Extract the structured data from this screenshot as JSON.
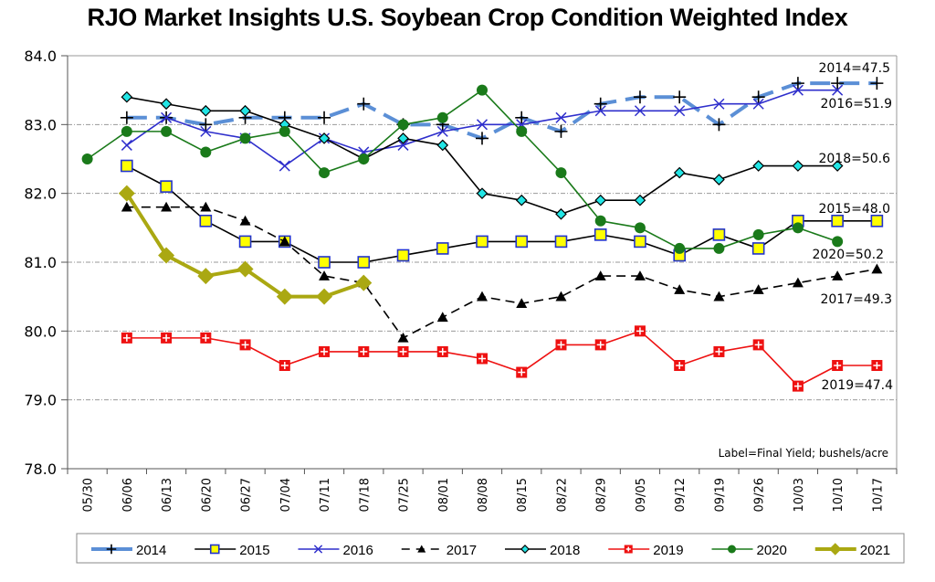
{
  "chart_data": {
    "type": "line",
    "title": "RJO Market Insights U.S. Soybean Crop Condition Weighted Index",
    "xlabel": "",
    "ylabel": "",
    "ylim": [
      78.0,
      84.0
    ],
    "yticks": [
      "78.0",
      "79.0",
      "80.0",
      "81.0",
      "82.0",
      "83.0",
      "84.0"
    ],
    "grid": true,
    "legend_position": "bottom",
    "note": "Label=Final Yield; bushels/acre",
    "categories": [
      "05/30",
      "06/06",
      "06/13",
      "06/20",
      "06/27",
      "07/04",
      "07/11",
      "07/18",
      "07/25",
      "08/01",
      "08/08",
      "08/15",
      "08/22",
      "08/29",
      "09/05",
      "09/12",
      "09/19",
      "09/26",
      "10/03",
      "10/10",
      "10/17"
    ],
    "series": [
      {
        "name": "2014",
        "color": "#5b8fd6",
        "marker": "plus",
        "dash": "long",
        "width": 4,
        "values": [
          null,
          83.1,
          83.1,
          83.0,
          83.1,
          83.1,
          83.1,
          83.3,
          83.0,
          83.0,
          82.8,
          83.1,
          82.9,
          83.3,
          83.4,
          83.4,
          83.0,
          83.4,
          83.6,
          83.6,
          83.6
        ],
        "label": "2014=47.5"
      },
      {
        "name": "2015",
        "color": "#000000",
        "marker": "square",
        "fill": "#ffff00",
        "stroke": "#2233cc",
        "values": [
          null,
          82.4,
          82.1,
          81.6,
          81.3,
          81.3,
          81.0,
          81.0,
          81.1,
          81.2,
          81.3,
          81.3,
          81.3,
          81.4,
          81.3,
          81.1,
          81.4,
          81.2,
          81.6,
          81.6,
          81.6
        ],
        "label": "2015=48.0"
      },
      {
        "name": "2016",
        "color": "#2f2fcc",
        "marker": "x",
        "values": [
          null,
          82.7,
          83.1,
          82.9,
          82.8,
          82.4,
          82.8,
          82.6,
          82.7,
          82.9,
          83.0,
          83.0,
          83.1,
          83.2,
          83.2,
          83.2,
          83.3,
          83.3,
          83.5,
          83.5,
          null
        ],
        "label": "2016=51.9"
      },
      {
        "name": "2017",
        "color": "#000000",
        "marker": "triangle",
        "dash": "dashed",
        "values": [
          null,
          81.8,
          81.8,
          81.8,
          81.6,
          81.3,
          80.8,
          80.7,
          79.9,
          80.2,
          80.5,
          80.4,
          80.5,
          80.8,
          80.8,
          80.6,
          80.5,
          80.6,
          80.7,
          80.8,
          80.9
        ],
        "label": "2017=49.3"
      },
      {
        "name": "2018",
        "color": "#000000",
        "marker": "diamond",
        "fill": "#22e5e5",
        "values": [
          null,
          83.4,
          83.3,
          83.2,
          83.2,
          83.0,
          82.8,
          82.5,
          82.8,
          82.7,
          82.0,
          81.9,
          81.7,
          81.9,
          81.9,
          82.3,
          82.2,
          82.4,
          82.4,
          82.4,
          null
        ],
        "label": "2018=50.6"
      },
      {
        "name": "2019",
        "color": "#ee1111",
        "marker": "cross-square",
        "values": [
          null,
          79.9,
          79.9,
          79.9,
          79.8,
          79.5,
          79.7,
          79.7,
          79.7,
          79.7,
          79.6,
          79.4,
          79.8,
          79.8,
          80.0,
          79.5,
          79.7,
          79.8,
          79.2,
          79.5,
          79.5
        ],
        "label": "2019=47.4"
      },
      {
        "name": "2020",
        "color": "#1a7a1a",
        "marker": "circle",
        "values": [
          82.5,
          82.9,
          82.9,
          82.6,
          82.8,
          82.9,
          82.3,
          82.5,
          83.0,
          83.1,
          83.5,
          82.9,
          82.3,
          81.6,
          81.5,
          81.2,
          81.2,
          81.4,
          81.5,
          81.3,
          null
        ],
        "label": "2020=50.2"
      },
      {
        "name": "2021",
        "color": "#aaa812",
        "marker": "diamond",
        "width": 4,
        "values": [
          null,
          82.0,
          81.1,
          80.8,
          80.9,
          80.5,
          80.5,
          80.7,
          null,
          null,
          null,
          null,
          null,
          null,
          null,
          null,
          null,
          null,
          null,
          null,
          null
        ],
        "label": ""
      }
    ]
  }
}
